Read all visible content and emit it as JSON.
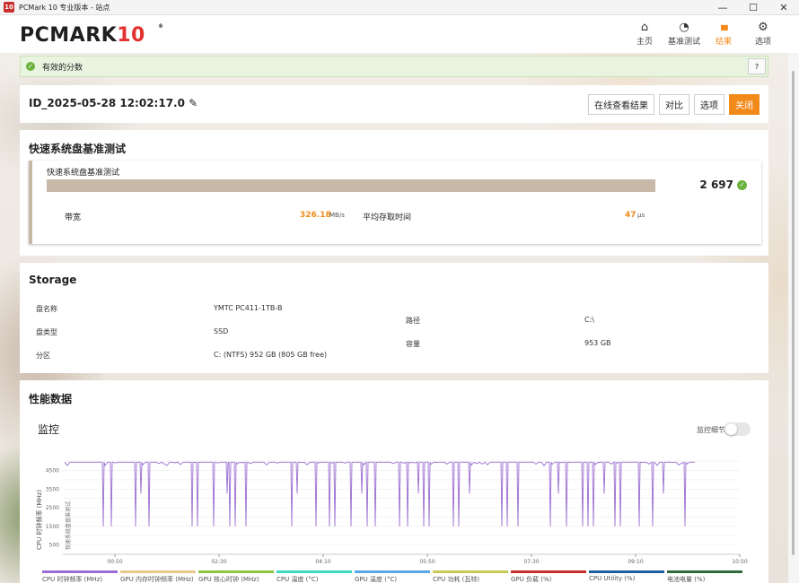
{
  "window": {
    "title": "PCMark 10 专业版本 - 站点",
    "icon_text": "10",
    "controls": [
      "—",
      "☐",
      "✕"
    ]
  },
  "logo": {
    "main": "PCMARK",
    "ten": "10",
    "reg": "®"
  },
  "nav": [
    {
      "label": "主页",
      "icon": "home-icon",
      "glyph": "⌂"
    },
    {
      "label": "基准测试",
      "icon": "gauge-icon",
      "glyph": "◔"
    },
    {
      "label": "结果",
      "icon": "bar-chart-icon",
      "glyph": "▮▮▮"
    },
    {
      "label": "选项",
      "icon": "gear-icon",
      "glyph": "⚙"
    }
  ],
  "banner": {
    "text": "有效的分数",
    "help": "?"
  },
  "result": {
    "id": "ID_2025-05-28 12:02:17.0",
    "buttons": {
      "online": "在线查看结果",
      "compare": "对比",
      "options": "选项",
      "close": "关闭"
    }
  },
  "quick_test": {
    "section_title": "快速系统盘基准测试",
    "card_name": "快速系统盘基准测试",
    "score": "2 697",
    "bandwidth_label": "带宽",
    "bandwidth_value": "326.18",
    "bandwidth_unit": "MB/s",
    "latency_label": "平均存取时间",
    "latency_value": "47",
    "latency_unit": "μs"
  },
  "storage": {
    "title": "Storage",
    "rows": [
      {
        "label": "盘名称",
        "value": "YMTC PC411-1TB-B"
      },
      {
        "label": "盘类型",
        "value": "SSD"
      },
      {
        "label": "分区",
        "value": "C: (NTFS) 952 GB (805 GB free)"
      }
    ],
    "right": [
      {
        "label": "路径",
        "value": "C:\\"
      },
      {
        "label": "容量",
        "value": "953 GB"
      }
    ]
  },
  "perf": {
    "title": "性能数据",
    "monitor": "监控",
    "toggle_label": "监控细节",
    "y_axis_label": "CPU 时钟频率 (MHz)",
    "inner_label": "快速系统盘基准测试",
    "y_ticks": [
      "4500",
      "3500",
      "2500",
      "1500",
      "500"
    ],
    "x_ticks": [
      "00:50",
      "02:30",
      "04:10",
      "05:50",
      "07:30",
      "09:10",
      "10:50"
    ],
    "line_color": "#9b6fd1",
    "legend": [
      {
        "name": "CPU 时钟频率 (MHz)",
        "color": "#9b6fd1"
      },
      {
        "name": "GPU 内存时钟频率 (MHz)",
        "color": "#e8c98b"
      },
      {
        "name": "GPU 核心时钟 (MHz)",
        "color": "#8dc63f"
      },
      {
        "name": "CPU 温度 (°C)",
        "color": "#3fd8c1"
      },
      {
        "name": "GPU 温度 (°C)",
        "color": "#5aa9e6"
      },
      {
        "name": "CPU 功耗 (瓦特)",
        "color": "#c9c95a"
      },
      {
        "name": "GPU 负载 (%)",
        "color": "#c8302d"
      },
      {
        "name": "CPU Utility (%)",
        "color": "#1f5fa0"
      },
      {
        "name": "电池电量 (%)",
        "color": "#2f6b3a"
      }
    ]
  }
}
